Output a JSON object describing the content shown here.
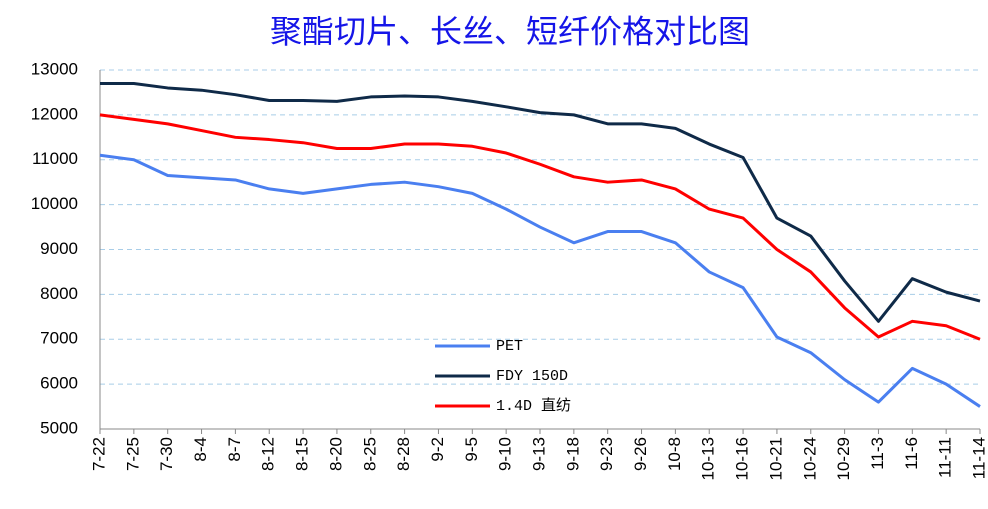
{
  "chart_data": {
    "type": "line",
    "title": "聚酯切片、长丝、短纤价格对比图",
    "categories": [
      "7-22",
      "7-25",
      "7-30",
      "8-4",
      "8-7",
      "8-12",
      "8-15",
      "8-20",
      "8-25",
      "8-28",
      "9-2",
      "9-5",
      "9-10",
      "9-13",
      "9-18",
      "9-23",
      "9-26",
      "10-8",
      "10-13",
      "10-16",
      "10-21",
      "10-24",
      "10-29",
      "11-3",
      "11-6",
      "11-11",
      "11-14"
    ],
    "series": [
      {
        "name": "PET",
        "color": "#4a7ff0",
        "values": [
          11100,
          11000,
          10650,
          10600,
          10550,
          10350,
          10250,
          10350,
          10450,
          10500,
          10400,
          10250,
          9900,
          9500,
          9150,
          9400,
          9400,
          9150,
          8500,
          8150,
          7050,
          6700,
          6100,
          5600,
          6350,
          6000,
          5500
        ]
      },
      {
        "name": "FDY 150D",
        "color": "#0f2a48",
        "values": [
          12700,
          12700,
          12600,
          12550,
          12450,
          12320,
          12320,
          12300,
          12400,
          12420,
          12400,
          12300,
          12180,
          12050,
          12000,
          11800,
          11800,
          11700,
          11350,
          11050,
          9700,
          9300,
          8300,
          7400,
          8350,
          8050,
          7850
        ]
      },
      {
        "name": "1.4D 直纺",
        "color": "#ff0000",
        "values": [
          12000,
          11900,
          11800,
          11650,
          11500,
          11450,
          11380,
          11250,
          11250,
          11350,
          11350,
          11300,
          11150,
          10900,
          10620,
          10500,
          10550,
          10350,
          9900,
          9700,
          9000,
          8500,
          7700,
          7050,
          7400,
          7300,
          7000
        ]
      }
    ],
    "ylim": [
      5000,
      13000
    ],
    "yticks": [
      5000,
      6000,
      7000,
      8000,
      9000,
      10000,
      11000,
      12000,
      13000
    ],
    "grid": true
  }
}
